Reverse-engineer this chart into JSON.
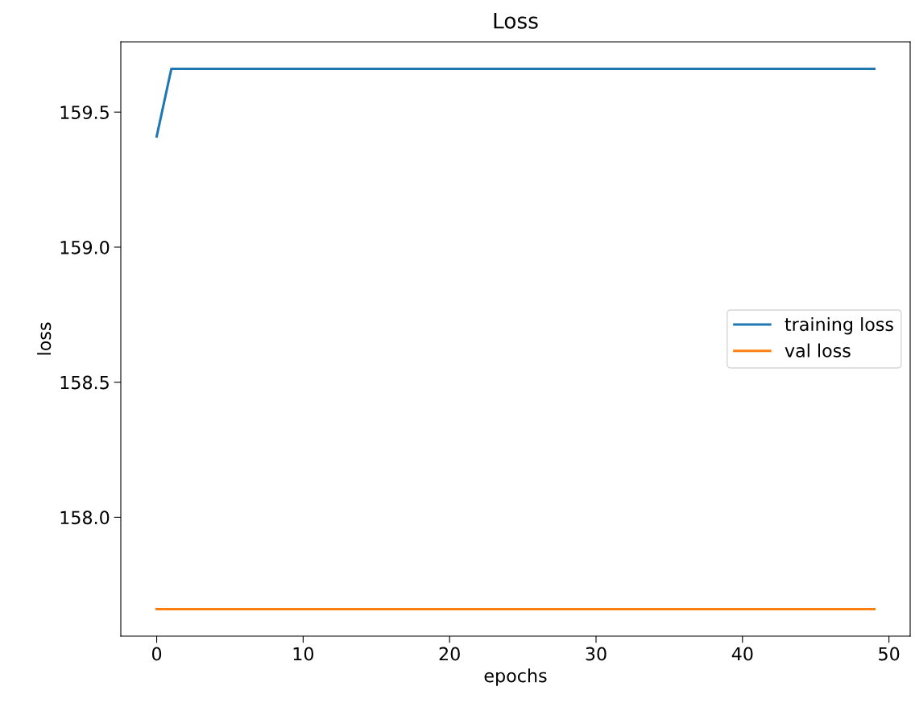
{
  "chart_data": {
    "type": "line",
    "title": "Loss",
    "xlabel": "epochs",
    "ylabel": "loss",
    "x": [
      0,
      1,
      2,
      3,
      4,
      5,
      6,
      7,
      8,
      9,
      10,
      11,
      12,
      13,
      14,
      15,
      16,
      17,
      18,
      19,
      20,
      21,
      22,
      23,
      24,
      25,
      26,
      27,
      28,
      29,
      30,
      31,
      32,
      33,
      34,
      35,
      36,
      37,
      38,
      39,
      40,
      41,
      42,
      43,
      44,
      45,
      46,
      47,
      48,
      49
    ],
    "series": [
      {
        "name": "training loss",
        "color": "#1f77b4",
        "values": [
          159.41,
          159.66,
          159.66,
          159.66,
          159.66,
          159.66,
          159.66,
          159.66,
          159.66,
          159.66,
          159.66,
          159.66,
          159.66,
          159.66,
          159.66,
          159.66,
          159.66,
          159.66,
          159.66,
          159.66,
          159.66,
          159.66,
          159.66,
          159.66,
          159.66,
          159.66,
          159.66,
          159.66,
          159.66,
          159.66,
          159.66,
          159.66,
          159.66,
          159.66,
          159.66,
          159.66,
          159.66,
          159.66,
          159.66,
          159.66,
          159.66,
          159.66,
          159.66,
          159.66,
          159.66,
          159.66,
          159.66,
          159.66,
          159.66,
          159.66
        ]
      },
      {
        "name": "val loss",
        "color": "#ff7f0e",
        "values": [
          157.66,
          157.66,
          157.66,
          157.66,
          157.66,
          157.66,
          157.66,
          157.66,
          157.66,
          157.66,
          157.66,
          157.66,
          157.66,
          157.66,
          157.66,
          157.66,
          157.66,
          157.66,
          157.66,
          157.66,
          157.66,
          157.66,
          157.66,
          157.66,
          157.66,
          157.66,
          157.66,
          157.66,
          157.66,
          157.66,
          157.66,
          157.66,
          157.66,
          157.66,
          157.66,
          157.66,
          157.66,
          157.66,
          157.66,
          157.66,
          157.66,
          157.66,
          157.66,
          157.66,
          157.66,
          157.66,
          157.66,
          157.66,
          157.66,
          157.66
        ]
      }
    ],
    "xlim": [
      -2.45,
      51.45
    ],
    "xticks": [
      0,
      10,
      20,
      30,
      40,
      50
    ],
    "ylim": [
      157.56,
      159.76
    ],
    "yticks": [
      {
        "value": 158.0,
        "label": "158.0"
      },
      {
        "value": 158.5,
        "label": "158.5"
      },
      {
        "value": 159.0,
        "label": "159.0"
      },
      {
        "value": 159.5,
        "label": "159.5"
      }
    ],
    "grid": false,
    "legend": "right",
    "marker": "none",
    "line_style": "solid"
  }
}
